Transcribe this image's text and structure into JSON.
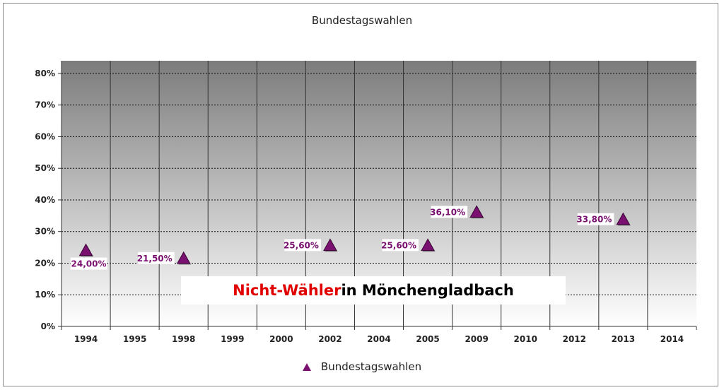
{
  "chart_data": {
    "type": "scatter",
    "title": "Bundestagswahlen",
    "categories": [
      "1994",
      "1995",
      "1998",
      "1999",
      "2000",
      "2002",
      "2004",
      "2005",
      "2009",
      "2010",
      "2012",
      "2013",
      "2014"
    ],
    "series": [
      {
        "name": "Bundestagswahlen",
        "marker": "triangle",
        "color": "#7a1070",
        "points": [
          {
            "x": "1994",
            "y": 24.0,
            "label": "24,00%"
          },
          {
            "x": "1998",
            "y": 21.5,
            "label": "21,50%"
          },
          {
            "x": "2002",
            "y": 25.6,
            "label": "25,60%"
          },
          {
            "x": "2005",
            "y": 25.6,
            "label": "25,60%"
          },
          {
            "x": "2009",
            "y": 36.1,
            "label": "36,10%"
          },
          {
            "x": "2013",
            "y": 33.8,
            "label": "33,80%"
          }
        ]
      }
    ],
    "y_ticks": [
      "0%",
      "10%",
      "20%",
      "30%",
      "40%",
      "50%",
      "60%",
      "70%",
      "80%"
    ],
    "ylim": [
      0,
      80
    ],
    "grid": true,
    "legend": "bottom-center",
    "annotation": {
      "part1": "Nicht-Wähler",
      "part2": " in Mönchengladbach",
      "part1_color": "#e00000"
    }
  }
}
